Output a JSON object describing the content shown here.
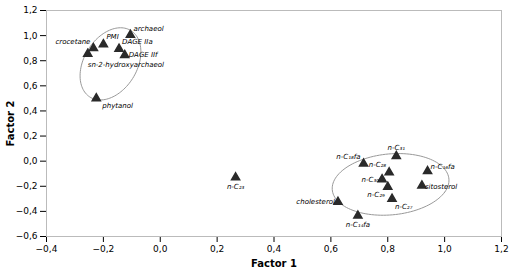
{
  "chart_data": {
    "type": "scatter",
    "xlabel": "Factor 1",
    "ylabel": "Factor 2",
    "x": [
      -0.2,
      -0.235,
      -0.255,
      -0.145,
      -0.125,
      -0.105,
      -0.225,
      0.265,
      0.625,
      0.695,
      0.715,
      0.83,
      0.805,
      0.78,
      0.8,
      0.815,
      0.94,
      0.92
    ],
    "y": [
      0.93,
      0.9,
      0.855,
      0.895,
      0.845,
      1.005,
      0.5,
      -0.13,
      -0.325,
      -0.435,
      -0.02,
      0.04,
      -0.09,
      -0.145,
      -0.205,
      -0.3,
      -0.08,
      -0.195
    ],
    "point_labels": [
      "PMI",
      "crocetane",
      "sn-2-hydroxyarchaeol",
      "DAGE IIa",
      "DAGE IIf",
      "archaeol",
      "phytanol",
      "n-C₂₃",
      "cholesterol",
      "n-C₁₄fa",
      "n-C₁₈fa",
      "n-C₃₁",
      "n-C₂₈",
      "n-C₃₀",
      "n-C₂₉",
      "n-C₂₇",
      "n-C₁₆fa",
      "sitosterol"
    ],
    "ellipses": [
      {
        "cx": -0.175,
        "cy": 0.775,
        "width": 0.2,
        "height": 0.58,
        "angle": -8
      },
      {
        "cx": 0.81,
        "cy": -0.185,
        "width": 0.4,
        "height": 0.5,
        "angle": -18
      }
    ],
    "ellipse_color": "#999999",
    "color": "#2a2a2a",
    "marker": "triangle",
    "grid": false,
    "xlim": [
      -0.4,
      1.2
    ],
    "ylim": [
      -0.6,
      1.2
    ],
    "xticks": [
      {
        "value": -0.4,
        "label": "−0,4"
      },
      {
        "value": -0.2,
        "label": "−0,2"
      },
      {
        "value": 0.0,
        "label": "0,0"
      },
      {
        "value": 0.2,
        "label": "0,2"
      },
      {
        "value": 0.4,
        "label": "0,4"
      },
      {
        "value": 0.6,
        "label": "0,6"
      },
      {
        "value": 0.8,
        "label": "0,8"
      },
      {
        "value": 1.0,
        "label": "1,0"
      },
      {
        "value": 1.2,
        "label": "1,2"
      }
    ],
    "yticks": [
      {
        "value": -0.6,
        "label": "−0,6"
      },
      {
        "value": -0.4,
        "label": "−0,4"
      },
      {
        "value": -0.2,
        "label": "−0,2"
      },
      {
        "value": 0.0,
        "label": "0,0"
      },
      {
        "value": 0.2,
        "label": "0,2"
      },
      {
        "value": 0.4,
        "label": "0,4"
      },
      {
        "value": 0.6,
        "label": "0,6"
      },
      {
        "value": 0.8,
        "label": "0,8"
      },
      {
        "value": 1.0,
        "label": "1,0"
      },
      {
        "value": 1.2,
        "label": "1,2"
      }
    ]
  }
}
